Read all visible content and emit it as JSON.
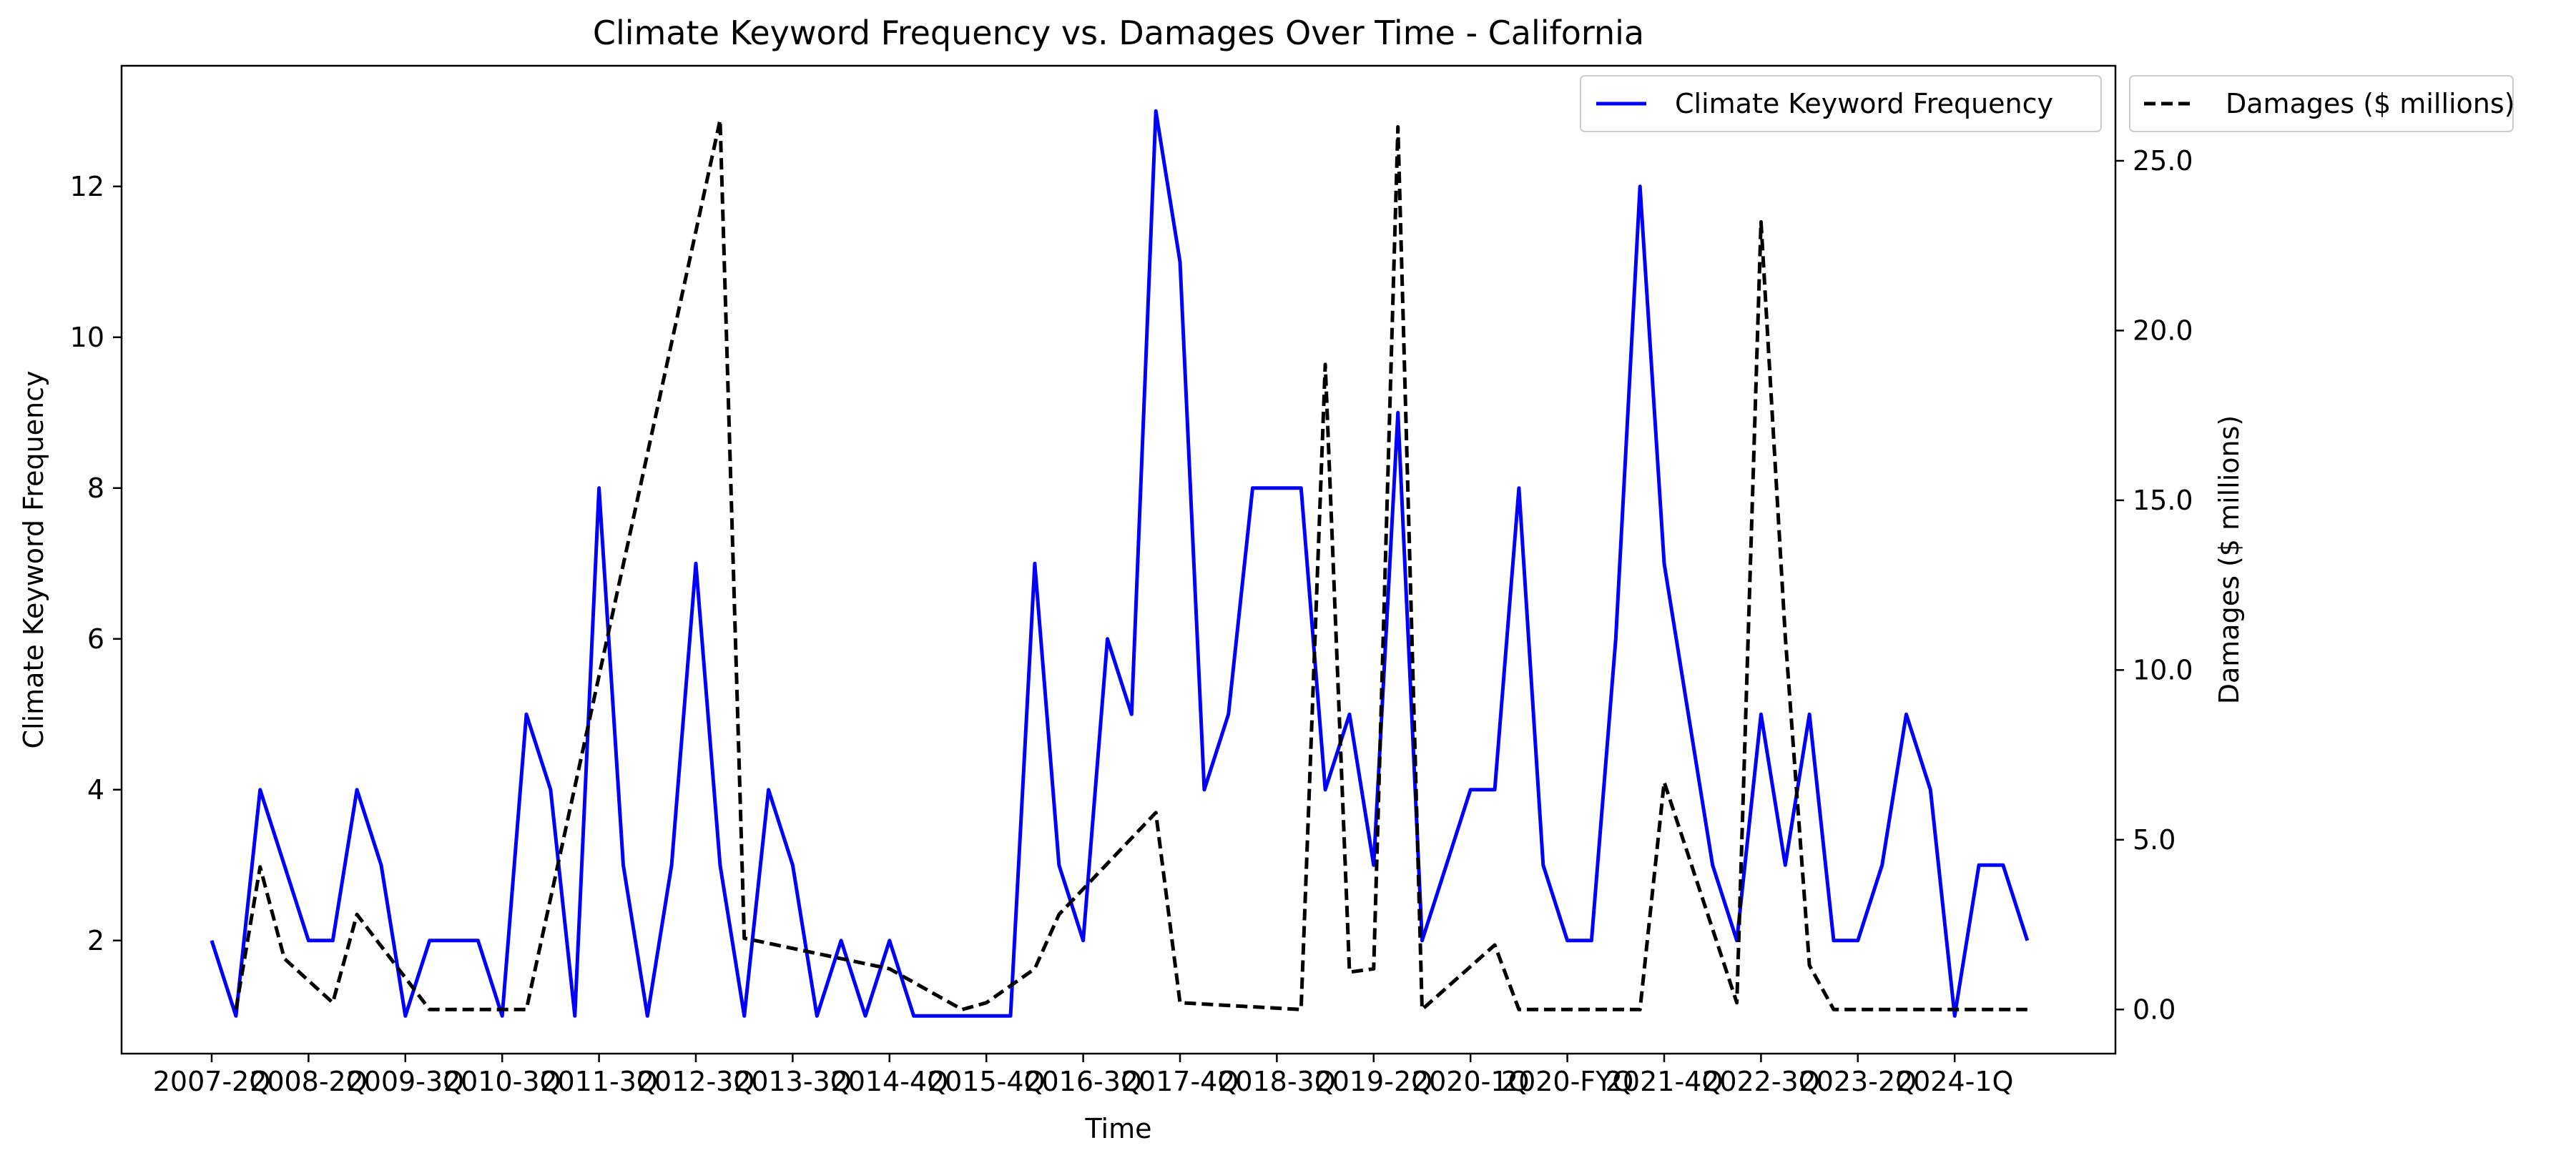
{
  "chart_data": {
    "type": "line",
    "title": "Climate Keyword Frequency vs. Damages Over Time - California",
    "xlabel": "Time",
    "ylabel_left": "Climate Keyword Frequency",
    "ylabel_right": "Damages ($ millions)",
    "x_ticks": [
      "2007-2Q",
      "2008-2Q",
      "2009-3Q",
      "2010-3Q",
      "2011-3Q",
      "2012-3Q",
      "2013-3Q",
      "2014-4Q",
      "2015-4Q",
      "2016-3Q",
      "2017-4Q",
      "2018-3Q",
      "2019-2Q",
      "2020-1Q",
      "2020-FYQ",
      "2021-4Q",
      "2022-3Q",
      "2023-2Q",
      "2024-1Q"
    ],
    "y_left_ticks": [
      "2",
      "4",
      "6",
      "8",
      "10",
      "12"
    ],
    "y_right_ticks": [
      "0.0",
      "5.0",
      "10.0",
      "15.0",
      "20.0",
      "25.0"
    ],
    "ylim_left": [
      0.5,
      13.6
    ],
    "ylim_right": [
      -1.3,
      27.8
    ],
    "grid": false,
    "legend_left_placement": "top-right inside plot",
    "legend_right_placement": "outside right of plot, top",
    "series": [
      {
        "name": "Climate Keyword Frequency",
        "axis": "left",
        "color": "#0000ff",
        "style": "solid",
        "x": [
          0,
          0.5,
          1,
          1.5,
          2,
          2.5,
          3,
          3.5,
          4,
          4.5,
          5,
          5.5,
          6,
          6.5,
          7,
          7.5,
          8,
          8.5,
          9,
          9.5,
          10,
          10.5,
          11,
          11.5,
          12,
          12.5,
          13,
          13.5,
          14,
          14.5,
          15,
          15.5,
          16,
          16.5,
          17,
          17.5,
          18,
          18.5,
          19,
          19.5,
          20,
          20.5,
          21,
          21.5,
          22,
          22.5,
          23,
          23.5,
          24,
          24.5,
          25,
          25.5,
          26,
          26.5,
          27,
          27.5,
          28,
          28.5,
          29,
          29.5,
          30,
          30.5,
          31,
          31.5,
          32,
          32.5,
          33,
          33.5,
          34,
          34.5,
          35,
          35.5,
          36,
          36.5,
          37,
          37.5
        ],
        "values": [
          2,
          1,
          4,
          3,
          2,
          2,
          4,
          3,
          1,
          2,
          2,
          2,
          1,
          5,
          4,
          1,
          8,
          3,
          1,
          3,
          7,
          3,
          1,
          4,
          3,
          1,
          2,
          1,
          2,
          1,
          1,
          1,
          1,
          1,
          7,
          3,
          2,
          6,
          5,
          13,
          11,
          4,
          5,
          8,
          8,
          8,
          4,
          5,
          3,
          9,
          2,
          3,
          4,
          4,
          8,
          3,
          2,
          2,
          6,
          12,
          7,
          5,
          3,
          2,
          5,
          3,
          5,
          2,
          2,
          3,
          5,
          4,
          1,
          3,
          3,
          2
        ]
      },
      {
        "name": "Damages ($ millions)",
        "axis": "right",
        "color": "#000000",
        "style": "dashed",
        "x": [
          0.5,
          1,
          1.5,
          2.5,
          3,
          4.5,
          5,
          6.5,
          10.5,
          11,
          14,
          15.5,
          16,
          17,
          17.5,
          19.5,
          20,
          22.5,
          23,
          23.5,
          24,
          24.5,
          25,
          26.5,
          27,
          29.5,
          30,
          31.5,
          32,
          32.5,
          33,
          33.5,
          34,
          34.5,
          35,
          35.5,
          36,
          36.5,
          37,
          37.5
        ],
        "values": [
          0,
          4.2,
          1.5,
          0.2,
          2.8,
          0,
          0,
          0,
          26.2,
          2.1,
          1.2,
          0,
          0.2,
          1.2,
          2.8,
          5.8,
          0.2,
          0,
          19,
          1.1,
          1.2,
          26,
          0,
          1.9,
          0,
          0,
          6.7,
          0.2,
          23.2,
          11,
          1.3,
          0,
          0,
          0,
          0,
          0,
          0,
          0,
          0,
          0
        ]
      }
    ]
  }
}
